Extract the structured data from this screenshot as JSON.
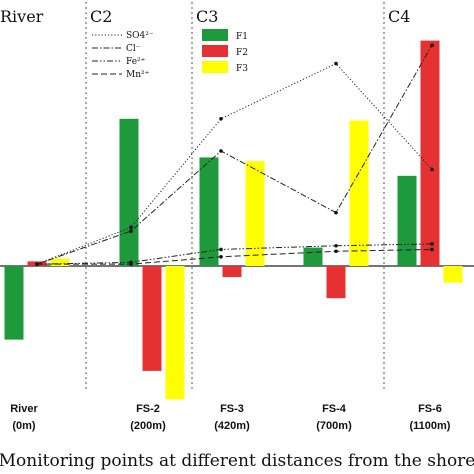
{
  "chart_data": {
    "type": "bar",
    "xlabel": "Monitoring points at different distances from the shore",
    "sections": [
      "River",
      "C2",
      "C3",
      "C4"
    ],
    "categories": [
      {
        "name": "River",
        "distance": "(0m)"
      },
      {
        "name": "FS-2",
        "distance": "(200m)"
      },
      {
        "name": "FS-3",
        "distance": "(420m)"
      },
      {
        "name": "FS-4",
        "distance": "(700m)"
      },
      {
        "name": "FS-6",
        "distance": "(1100m)"
      }
    ],
    "ylim": [
      -1.6,
      2.9
    ],
    "bar_series": [
      {
        "name": "F1",
        "color": "#1e9a3c",
        "values": [
          -0.8,
          1.6,
          1.18,
          0.2,
          0.98
        ]
      },
      {
        "name": "F2",
        "color": "#e53131",
        "values": [
          0.05,
          -1.14,
          -0.12,
          -0.35,
          2.45
        ]
      },
      {
        "name": "F3",
        "color": "#ffff00",
        "values": [
          0.08,
          -1.45,
          1.14,
          1.58,
          -0.18
        ]
      }
    ],
    "line_series": [
      {
        "name": "SO4²⁻",
        "style": "dotted",
        "values": [
          0.02,
          0.42,
          1.6,
          2.2,
          1.05
        ]
      },
      {
        "name": "Cl⁻",
        "style": "dashdot",
        "values": [
          0.02,
          0.38,
          1.25,
          0.58,
          2.4
        ]
      },
      {
        "name": "Fe²⁺",
        "style": "dashdotdot",
        "values": [
          0.02,
          0.04,
          0.18,
          0.22,
          0.24
        ]
      },
      {
        "name": "Mn²⁺",
        "style": "dashed",
        "values": [
          0.02,
          0.02,
          0.1,
          0.16,
          0.18
        ]
      }
    ]
  }
}
